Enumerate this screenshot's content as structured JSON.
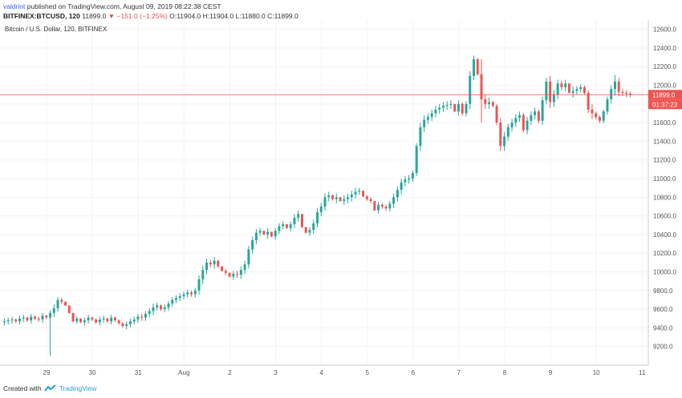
{
  "header": {
    "author": "valdrint",
    "published": "published on TradingView.com, August 09, 2019 08:22:38 CEST",
    "symbol": "BITFINEX:BTCUSD, 120",
    "last": "11899.0",
    "change": "▼ −151.0 (−1.25%)",
    "ohlc": "O:11904.0 H:11904.0 L:11880.0 C:11899.0"
  },
  "footer": {
    "created": "Created with",
    "brand": "TradingView"
  },
  "colors": {
    "up": "#26a69a",
    "down": "#ef5350",
    "grid": "#f0f3fa",
    "axis_text": "#555555",
    "price_line": "#ef5350"
  },
  "chart_data": {
    "type": "candlestick",
    "title": "Bitcoin / U.S. Dollar, 120, BITFINEX",
    "ylim": [
      9000,
      12700
    ],
    "y_ticks": [
      9200,
      9400,
      9600,
      9800,
      10000,
      10200,
      10400,
      10600,
      10800,
      11000,
      11200,
      11400,
      11600,
      11800,
      12000,
      12200,
      12400,
      12600
    ],
    "x_ticks": [
      {
        "label": "29",
        "t": 0
      },
      {
        "label": "30",
        "t": 1
      },
      {
        "label": "31",
        "t": 2
      },
      {
        "label": "Aug",
        "t": 3
      },
      {
        "label": "2",
        "t": 4
      },
      {
        "label": "3",
        "t": 5
      },
      {
        "label": "4",
        "t": 6
      },
      {
        "label": "5",
        "t": 7
      },
      {
        "label": "6",
        "t": 8
      },
      {
        "label": "7",
        "t": 9
      },
      {
        "label": "8",
        "t": 10
      },
      {
        "label": "9",
        "t": 11
      },
      {
        "label": "10",
        "t": 12
      },
      {
        "label": "11",
        "t": 13
      }
    ],
    "x_start": -0.92,
    "x_step": 0.0833,
    "last_price": 11899.0,
    "last_price_label": "11899.0",
    "countdown_label": "01:37:23",
    "close": [
      9470,
      9480,
      9490,
      9470,
      9500,
      9510,
      9480,
      9520,
      9500,
      9490,
      9530,
      9510,
      9560,
      9610,
      9700,
      9680,
      9640,
      9560,
      9470,
      9500,
      9460,
      9480,
      9510,
      9490,
      9460,
      9490,
      9500,
      9470,
      9510,
      9480,
      9450,
      9420,
      9440,
      9470,
      9490,
      9520,
      9510,
      9550,
      9580,
      9620,
      9640,
      9600,
      9620,
      9660,
      9700,
      9720,
      9740,
      9760,
      9780,
      9760,
      9800,
      9920,
      10020,
      10100,
      10080,
      10120,
      10060,
      10010,
      9990,
      9950,
      9980,
      9970,
      10020,
      10080,
      10240,
      10340,
      10420,
      10440,
      10400,
      10430,
      10380,
      10440,
      10490,
      10510,
      10470,
      10510,
      10580,
      10620,
      10480,
      10420,
      10450,
      10520,
      10640,
      10700,
      10800,
      10820,
      10780,
      10800,
      10760,
      10780,
      10800,
      10830,
      10860,
      10870,
      10810,
      10780,
      10760,
      10660,
      10720,
      10700,
      10680,
      10730,
      10800,
      10880,
      10960,
      10990,
      11000,
      11060,
      11350,
      11550,
      11630,
      11660,
      11700,
      11740,
      11760,
      11780,
      11790,
      11800,
      11720,
      11800,
      11700,
      11800,
      12100,
      12280,
      12120,
      11850,
      11800,
      11820,
      11780,
      11600,
      11350,
      11450,
      11550,
      11600,
      11650,
      11680,
      11520,
      11620,
      11680,
      11720,
      11620,
      11840,
      12040,
      11820,
      11900,
      12020,
      11980,
      12020,
      11920,
      11940,
      11960,
      11980,
      11920,
      11740,
      11700,
      11660,
      11620,
      11720,
      11850,
      11960,
      12040,
      11930,
      11920,
      11910,
      11899
    ],
    "high": [
      9500,
      9510,
      9520,
      9500,
      9530,
      9540,
      9520,
      9550,
      9530,
      9520,
      9560,
      9540,
      9590,
      9650,
      9730,
      9720,
      9680,
      9600,
      9510,
      9520,
      9500,
      9510,
      9540,
      9520,
      9500,
      9520,
      9530,
      9510,
      9540,
      9520,
      9490,
      9460,
      9470,
      9500,
      9520,
      9550,
      9550,
      9580,
      9610,
      9660,
      9670,
      9650,
      9650,
      9690,
      9730,
      9750,
      9770,
      9790,
      9810,
      9800,
      9830,
      9960,
      10070,
      10140,
      10130,
      10160,
      10130,
      10060,
      10030,
      9990,
      10010,
      10010,
      10060,
      10120,
      10280,
      10380,
      10460,
      10470,
      10440,
      10470,
      10420,
      10470,
      10520,
      10540,
      10510,
      10540,
      10620,
      10660,
      10550,
      10460,
      10480,
      10560,
      10680,
      10740,
      10840,
      10860,
      10830,
      10840,
      10800,
      10820,
      10840,
      10870,
      10900,
      10900,
      10860,
      10820,
      10800,
      10740,
      10750,
      10740,
      10720,
      10760,
      10840,
      10920,
      11000,
      11030,
      11040,
      11090,
      11380,
      11600,
      11680,
      11700,
      11740,
      11780,
      11800,
      11820,
      11830,
      11840,
      11800,
      11840,
      11820,
      11830,
      12150,
      12320,
      12290,
      12100,
      11900,
      11870,
      11830,
      11800,
      11650,
      11500,
      11590,
      11640,
      11690,
      11720,
      11700,
      11660,
      11720,
      11760,
      11740,
      11880,
      12080,
      12100,
      11950,
      12060,
      12050,
      12060,
      12020,
      11990,
      11990,
      12010,
      12000,
      11950,
      11800,
      11720,
      11680,
      11740,
      11880,
      12000,
      12110,
      12080,
      11960,
      11950,
      11930
    ]
  }
}
